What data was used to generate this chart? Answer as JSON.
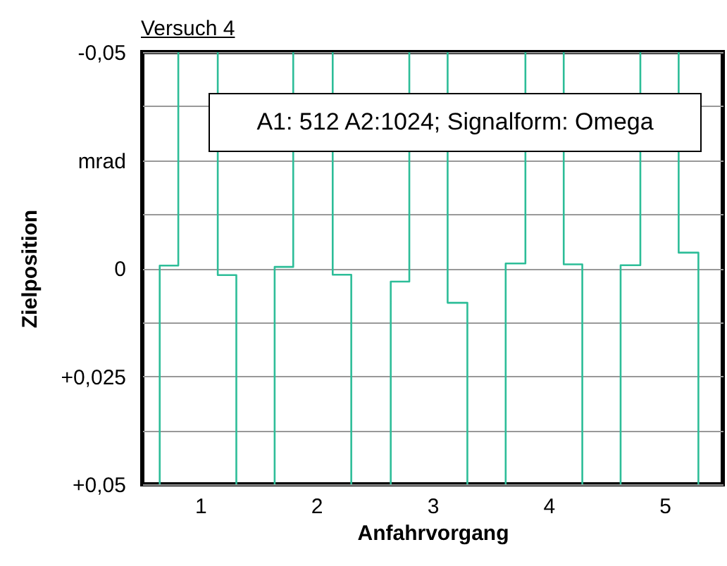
{
  "chart_data": {
    "type": "line",
    "title": "Versuch 4",
    "xlabel": "Anfahrvorgang",
    "ylabel": "Zielposition",
    "annotations": [
      "A1: 512 A2:1024; Signalform: Omega"
    ],
    "series": [
      {
        "color": "#2dbd98",
        "x": [
          0.65,
          0.65,
          0.81,
          0.81,
          0.98,
          1.15,
          1.15,
          1.31,
          1.31,
          1.48,
          1.64,
          1.64,
          1.8,
          1.8,
          1.97,
          2.14,
          2.14,
          2.3,
          2.3,
          2.47,
          2.64,
          2.64,
          2.8,
          2.8,
          2.97,
          3.13,
          3.13,
          3.3,
          3.3,
          3.47,
          3.63,
          3.63,
          3.8,
          3.8,
          3.96,
          4.13,
          4.13,
          4.29,
          4.29,
          4.46,
          4.62,
          4.62,
          4.79,
          4.79,
          4.96,
          5.12,
          5.12,
          5.29,
          5.29
        ],
        "values": [
          0.05,
          -0.0006,
          -0.0006,
          -0.05,
          null,
          -0.05,
          0.0016,
          0.0016,
          0.05,
          null,
          0.05,
          -0.0003,
          -0.0003,
          -0.05,
          null,
          -0.05,
          0.0015,
          0.0015,
          0.05,
          null,
          0.05,
          0.0031,
          0.0031,
          -0.05,
          null,
          -0.05,
          0.008,
          0.008,
          0.05,
          null,
          0.05,
          -0.0011,
          -0.0011,
          -0.05,
          null,
          -0.05,
          -0.0009,
          -0.0009,
          0.05,
          null,
          0.05,
          -0.0007,
          -0.0007,
          -0.05,
          null,
          -0.05,
          -0.0036,
          -0.0036,
          0.05
        ]
      }
    ],
    "xlim": [
      0.5,
      5.5
    ],
    "xticks": [
      1,
      2,
      3,
      4,
      5
    ],
    "ylim": [
      0.05,
      -0.05
    ],
    "yticks": [
      {
        "value": -0.05,
        "label": "-0,05"
      },
      {
        "value": -0.0375,
        "label": null
      },
      {
        "value": -0.025,
        "label": "mrad"
      },
      {
        "value": -0.0125,
        "label": null
      },
      {
        "value": 0,
        "label": "0"
      },
      {
        "value": 0.0125,
        "label": null
      },
      {
        "value": 0.025,
        "label": "+0,025"
      },
      {
        "value": 0.0375,
        "label": null
      },
      {
        "value": 0.05,
        "label": "+0,05"
      }
    ],
    "grid": "y"
  }
}
